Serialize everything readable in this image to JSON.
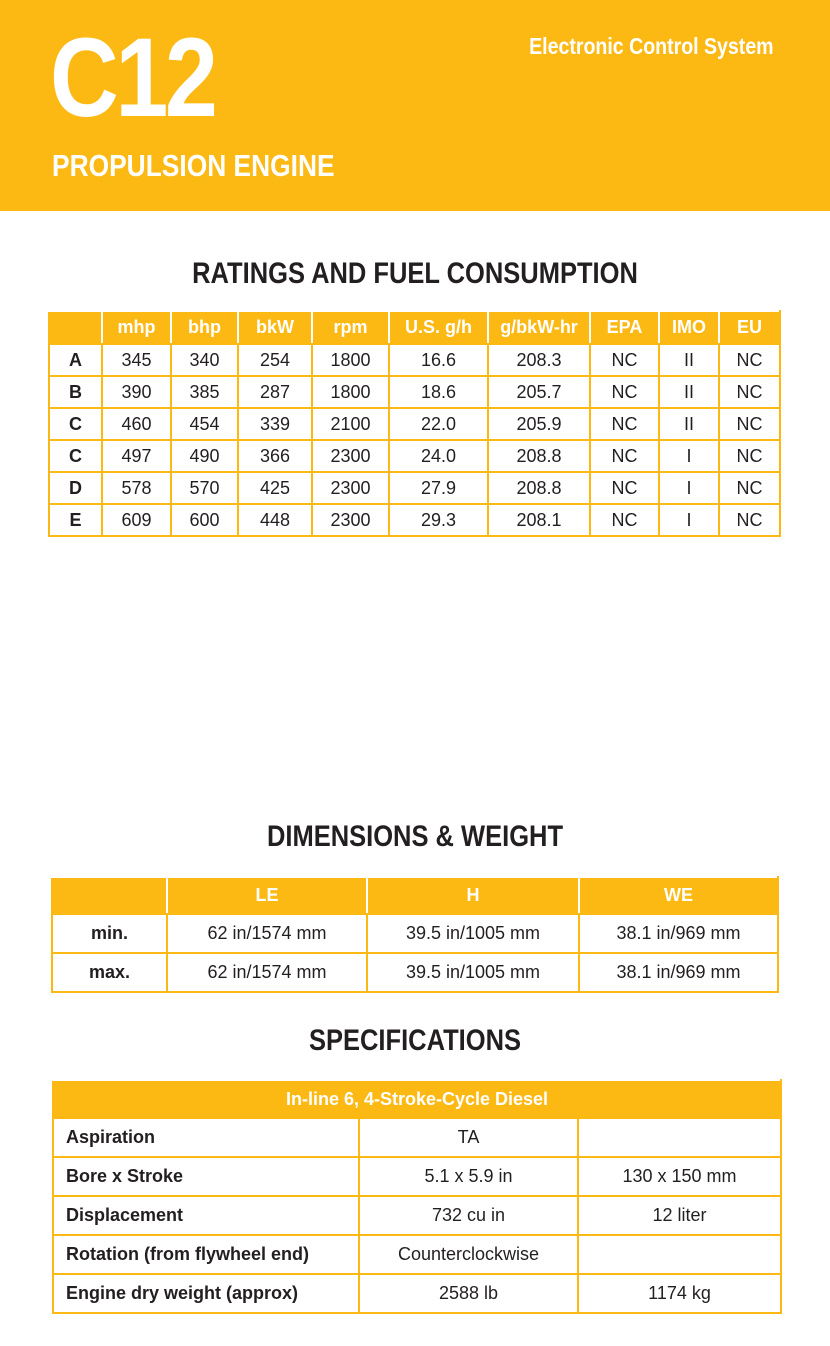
{
  "header": {
    "model": "C12",
    "subtitle": "PROPULSION ENGINE",
    "system": "Electronic Control System"
  },
  "ratings": {
    "title": "RATINGS AND FUEL CONSUMPTION",
    "columns": [
      "",
      "mhp",
      "bhp",
      "bkW",
      "rpm",
      "U.S. g/h",
      "g/bkW-hr",
      "EPA",
      "IMO",
      "EU"
    ],
    "rows": [
      [
        "A",
        "345",
        "340",
        "254",
        "1800",
        "16.6",
        "208.3",
        "NC",
        "II",
        "NC"
      ],
      [
        "B",
        "390",
        "385",
        "287",
        "1800",
        "18.6",
        "205.7",
        "NC",
        "II",
        "NC"
      ],
      [
        "C",
        "460",
        "454",
        "339",
        "2100",
        "22.0",
        "205.9",
        "NC",
        "II",
        "NC"
      ],
      [
        "C",
        "497",
        "490",
        "366",
        "2300",
        "24.0",
        "208.8",
        "NC",
        "I",
        "NC"
      ],
      [
        "D",
        "578",
        "570",
        "425",
        "2300",
        "27.9",
        "208.8",
        "NC",
        "I",
        "NC"
      ],
      [
        "E",
        "609",
        "600",
        "448",
        "2300",
        "29.3",
        "208.1",
        "NC",
        "I",
        "NC"
      ]
    ]
  },
  "dimensions": {
    "title": "DIMENSIONS & WEIGHT",
    "columns": [
      "",
      "LE",
      "H",
      "WE"
    ],
    "rows": [
      [
        "min.",
        "62 in/1574 mm",
        "39.5 in/1005 mm",
        "38.1 in/969 mm"
      ],
      [
        "max.",
        "62 in/1574 mm",
        "39.5 in/1005 mm",
        "38.1 in/969 mm"
      ]
    ]
  },
  "specs": {
    "title": "SPECIFICATIONS",
    "header": "In-line 6, 4-Stroke-Cycle Diesel",
    "rows": [
      [
        "Aspiration",
        "TA",
        ""
      ],
      [
        "Bore x Stroke",
        "5.1 x 5.9 in",
        "130 x 150 mm"
      ],
      [
        "Displacement",
        "732 cu in",
        "12 liter"
      ],
      [
        "Rotation (from flywheel end)",
        "Counterclockwise",
        ""
      ],
      [
        "Engine dry weight (approx)",
        "2588 lb",
        "1174 kg"
      ]
    ]
  },
  "colors": {
    "accent": "#fdb913"
  }
}
